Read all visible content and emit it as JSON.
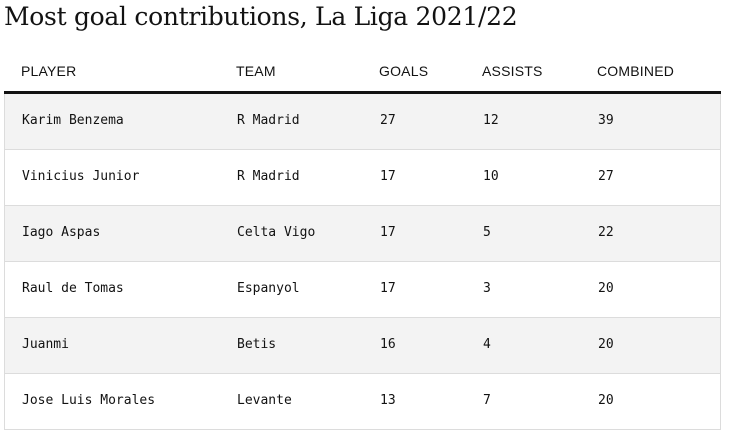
{
  "chart_data": {
    "type": "table",
    "title": "Most goal contributions, La Liga 2021/22",
    "columns": [
      "PLAYER",
      "TEAM",
      "GOALS",
      "ASSISTS",
      "COMBINED"
    ],
    "rows": [
      [
        "Karim Benzema",
        "R Madrid",
        "27",
        "12",
        "39"
      ],
      [
        "Vinicius Junior",
        "R Madrid",
        "17",
        "10",
        "27"
      ],
      [
        "Iago Aspas",
        "Celta Vigo",
        "17",
        "5",
        "22"
      ],
      [
        "Raul de Tomas",
        "Espanyol",
        "17",
        "3",
        "20"
      ],
      [
        "Juanmi",
        "Betis",
        "16",
        "4",
        "20"
      ],
      [
        "Jose Luis Morales",
        "Levante",
        "13",
        "7",
        "20"
      ]
    ]
  },
  "colors": {
    "text": "#121212",
    "row_shade": "#f3f3f3",
    "row_border": "#dcdcdc",
    "header_rule": "#121212"
  }
}
